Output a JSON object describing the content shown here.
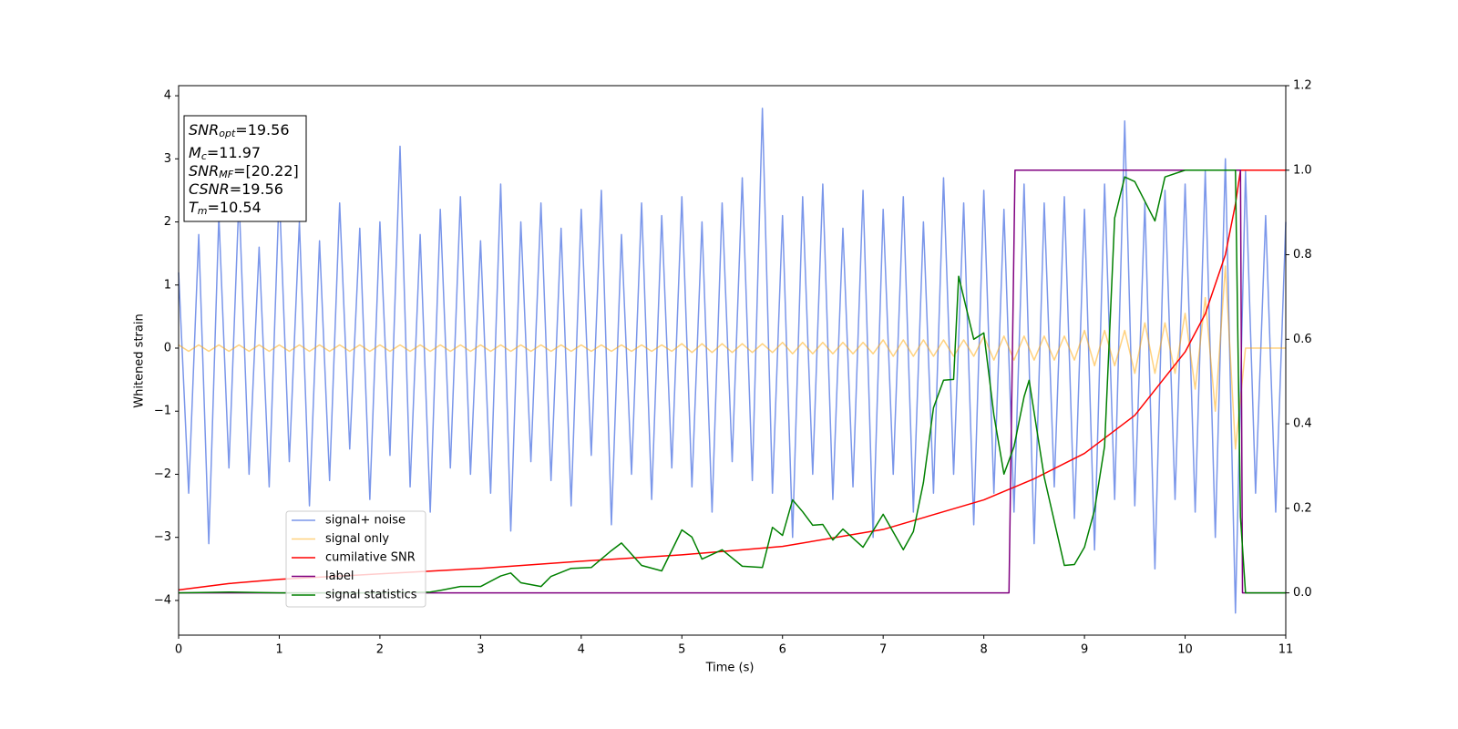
{
  "chart_data": {
    "type": "line",
    "xlabel": "Time (s)",
    "ylabel": "Whitened strain",
    "xlim": [
      0,
      11
    ],
    "ylim": [
      -4.55,
      4.16
    ],
    "y2lim": [
      -0.1,
      1.2
    ],
    "xticks": [
      0,
      1,
      2,
      3,
      4,
      5,
      6,
      7,
      8,
      9,
      10,
      11
    ],
    "yticks": [
      {
        "value": -4,
        "label": "−4"
      },
      {
        "value": -3,
        "label": "−3"
      },
      {
        "value": -2,
        "label": "−2"
      },
      {
        "value": -1,
        "label": "−1"
      },
      0,
      1,
      2,
      3,
      4
    ],
    "y2ticks": [
      {
        "value": 0,
        "label": "0.0"
      },
      {
        "value": 0.2,
        "label": "0.2"
      },
      {
        "value": 0.4,
        "label": "0.4"
      },
      {
        "value": 0.6,
        "label": "0.6"
      },
      {
        "value": 0.8,
        "label": "0.8"
      },
      {
        "value": 1.0,
        "label": "1.0"
      },
      {
        "value": 1.2,
        "label": "1.2"
      }
    ],
    "annotations": [
      {
        "text": "SNR",
        "sub": "opt",
        "rest": "=19.56"
      },
      {
        "text": "M",
        "sub": "c",
        "rest": "=11.97"
      },
      {
        "text": "SNR",
        "sub": "MF",
        "rest": "=[20.22]"
      },
      {
        "text": "CSNR",
        "sub": null,
        "rest": "=19.56"
      },
      {
        "text": "T",
        "sub": "m",
        "rest": "=10.54"
      }
    ],
    "x": [
      0,
      0.1,
      0.2,
      0.3,
      0.4,
      0.5,
      0.6,
      0.7,
      0.8,
      0.9,
      1,
      1.1,
      1.2,
      1.3,
      1.4,
      1.5,
      1.6,
      1.7,
      1.8,
      1.9,
      2,
      2.1,
      2.2,
      2.3,
      2.4,
      2.5,
      2.6,
      2.7,
      2.8,
      2.9,
      3,
      3.1,
      3.2,
      3.3,
      3.4,
      3.5,
      3.6,
      3.7,
      3.8,
      3.9,
      4,
      4.1,
      4.2,
      4.3,
      4.4,
      4.5,
      4.6,
      4.7,
      4.8,
      4.9,
      5,
      5.1,
      5.2,
      5.3,
      5.4,
      5.5,
      5.6,
      5.7,
      5.8,
      5.9,
      6,
      6.1,
      6.2,
      6.3,
      6.4,
      6.5,
      6.6,
      6.7,
      6.8,
      6.9,
      7,
      7.1,
      7.2,
      7.3,
      7.4,
      7.5,
      7.6,
      7.7,
      7.8,
      7.9,
      8,
      8.1,
      8.2,
      8.3,
      8.4,
      8.5,
      8.6,
      8.7,
      8.8,
      8.9,
      9,
      9.1,
      9.2,
      9.3,
      9.4,
      9.5,
      9.6,
      9.7,
      9.8,
      9.9,
      10,
      10.1,
      10.2,
      10.3,
      10.4,
      10.5,
      10.6,
      10.7,
      10.8,
      10.9,
      11
    ],
    "series": [
      {
        "name": "signal+ noise",
        "color": "#4169e1",
        "opacity": 0.7,
        "values": [
          1.2,
          -2.3,
          1.8,
          -3.1,
          2.1,
          -1.9,
          2.4,
          -2.0,
          1.6,
          -2.2,
          2.5,
          -1.8,
          2.0,
          -2.5,
          1.7,
          -2.1,
          2.3,
          -1.6,
          1.9,
          -2.4,
          2.0,
          -1.7,
          3.2,
          -2.2,
          1.8,
          -2.6,
          2.2,
          -1.9,
          2.4,
          -2.0,
          1.7,
          -2.3,
          2.6,
          -2.9,
          2.0,
          -1.8,
          2.3,
          -2.1,
          1.9,
          -2.5,
          2.2,
          -1.7,
          2.5,
          -2.8,
          1.8,
          -2.0,
          2.3,
          -2.4,
          2.1,
          -1.9,
          2.4,
          -2.2,
          2.0,
          -2.6,
          2.3,
          -1.8,
          2.7,
          -2.1,
          3.8,
          -2.3,
          2.1,
          -3.0,
          2.4,
          -2.0,
          2.6,
          -2.4,
          1.9,
          -2.2,
          2.5,
          -3.0,
          2.2,
          -2.0,
          2.4,
          -2.6,
          2.0,
          -2.3,
          2.7,
          -2.0,
          2.3,
          -2.8,
          2.5,
          -2.3,
          2.2,
          -2.6,
          2.6,
          -3.1,
          2.3,
          -2.2,
          2.4,
          -2.7,
          2.2,
          -3.2,
          2.6,
          -2.4,
          3.6,
          -2.5,
          2.3,
          -3.5,
          2.5,
          -2.4,
          2.6,
          -2.6,
          2.8,
          -3.0,
          3.0,
          -4.2,
          2.8,
          -2.3,
          2.1,
          -2.6,
          2.0
        ]
      },
      {
        "name": "signal only",
        "color": "#ffa500",
        "opacity": 0.5,
        "values": [
          0.05,
          -0.05,
          0.05,
          -0.05,
          0.05,
          -0.05,
          0.05,
          -0.05,
          0.05,
          -0.05,
          0.05,
          -0.05,
          0.05,
          -0.05,
          0.05,
          -0.05,
          0.05,
          -0.05,
          0.05,
          -0.05,
          0.05,
          -0.05,
          0.05,
          -0.05,
          0.05,
          -0.05,
          0.05,
          -0.05,
          0.05,
          -0.05,
          0.05,
          -0.05,
          0.05,
          -0.05,
          0.05,
          -0.05,
          0.05,
          -0.05,
          0.05,
          -0.05,
          0.05,
          -0.05,
          0.05,
          -0.05,
          0.05,
          -0.05,
          0.05,
          -0.05,
          0.05,
          -0.05,
          0.07,
          -0.07,
          0.07,
          -0.07,
          0.07,
          -0.07,
          0.07,
          -0.07,
          0.07,
          -0.07,
          0.09,
          -0.09,
          0.09,
          -0.09,
          0.09,
          -0.09,
          0.09,
          -0.09,
          0.09,
          -0.09,
          0.13,
          -0.13,
          0.13,
          -0.13,
          0.13,
          -0.13,
          0.13,
          -0.13,
          0.13,
          -0.13,
          0.19,
          -0.19,
          0.19,
          -0.19,
          0.19,
          -0.19,
          0.19,
          -0.19,
          0.19,
          -0.19,
          0.28,
          -0.28,
          0.28,
          -0.28,
          0.28,
          -0.4,
          0.4,
          -0.4,
          0.4,
          -0.4,
          0.55,
          -0.65,
          0.8,
          -1.0,
          1.3,
          -1.6,
          0,
          0,
          0,
          0,
          0
        ]
      },
      {
        "name": "cumilative SNR",
        "color": "#ff0000",
        "axis": "y2",
        "x": [
          0,
          0.5,
          1,
          2,
          3,
          4,
          5,
          6,
          7,
          8,
          8.5,
          9,
          9.5,
          10,
          10.2,
          10.4,
          10.5,
          10.55,
          11
        ],
        "values": [
          0.007,
          0.022,
          0.032,
          0.045,
          0.058,
          0.075,
          0.09,
          0.11,
          0.15,
          0.22,
          0.27,
          0.33,
          0.42,
          0.57,
          0.66,
          0.8,
          0.92,
          1.0,
          1.0
        ]
      },
      {
        "name": "label",
        "color": "#800080",
        "axis": "y2",
        "x": [
          0,
          8.25,
          8.31,
          10.55,
          10.57,
          11
        ],
        "values": [
          0,
          0,
          1,
          1,
          0,
          0
        ]
      },
      {
        "name": "signal statistics",
        "color": "#008000",
        "axis": "y2",
        "x": [
          0,
          0.5,
          1,
          2,
          2.5,
          2.6,
          2.8,
          3,
          3.2,
          3.3,
          3.4,
          3.6,
          3.7,
          3.9,
          4.1,
          4.3,
          4.4,
          4.6,
          4.8,
          5,
          5.1,
          5.2,
          5.4,
          5.6,
          5.8,
          5.9,
          6,
          6.1,
          6.2,
          6.3,
          6.4,
          6.5,
          6.6,
          6.8,
          7,
          7.2,
          7.3,
          7.4,
          7.5,
          7.6,
          7.7,
          7.75,
          7.9,
          8,
          8.1,
          8.2,
          8.3,
          8.4,
          8.45,
          8.6,
          8.8,
          8.9,
          9,
          9.1,
          9.2,
          9.3,
          9.4,
          9.5,
          9.7,
          9.8,
          10,
          10.5,
          10.55,
          10.6,
          11
        ],
        "values": [
          0,
          0.002,
          0,
          0,
          0.002,
          0.006,
          0.015,
          0.015,
          0.04,
          0.047,
          0.024,
          0.015,
          0.039,
          0.058,
          0.06,
          0.1,
          0.118,
          0.065,
          0.052,
          0.149,
          0.132,
          0.08,
          0.102,
          0.063,
          0.06,
          0.155,
          0.136,
          0.22,
          0.192,
          0.16,
          0.162,
          0.125,
          0.151,
          0.108,
          0.186,
          0.102,
          0.145,
          0.261,
          0.438,
          0.503,
          0.505,
          0.749,
          0.6,
          0.615,
          0.421,
          0.281,
          0.346,
          0.464,
          0.503,
          0.274,
          0.065,
          0.067,
          0.108,
          0.196,
          0.347,
          0.887,
          0.984,
          0.973,
          0.88,
          0.984,
          1.0,
          1.0,
          0.179,
          0,
          0
        ]
      }
    ]
  }
}
